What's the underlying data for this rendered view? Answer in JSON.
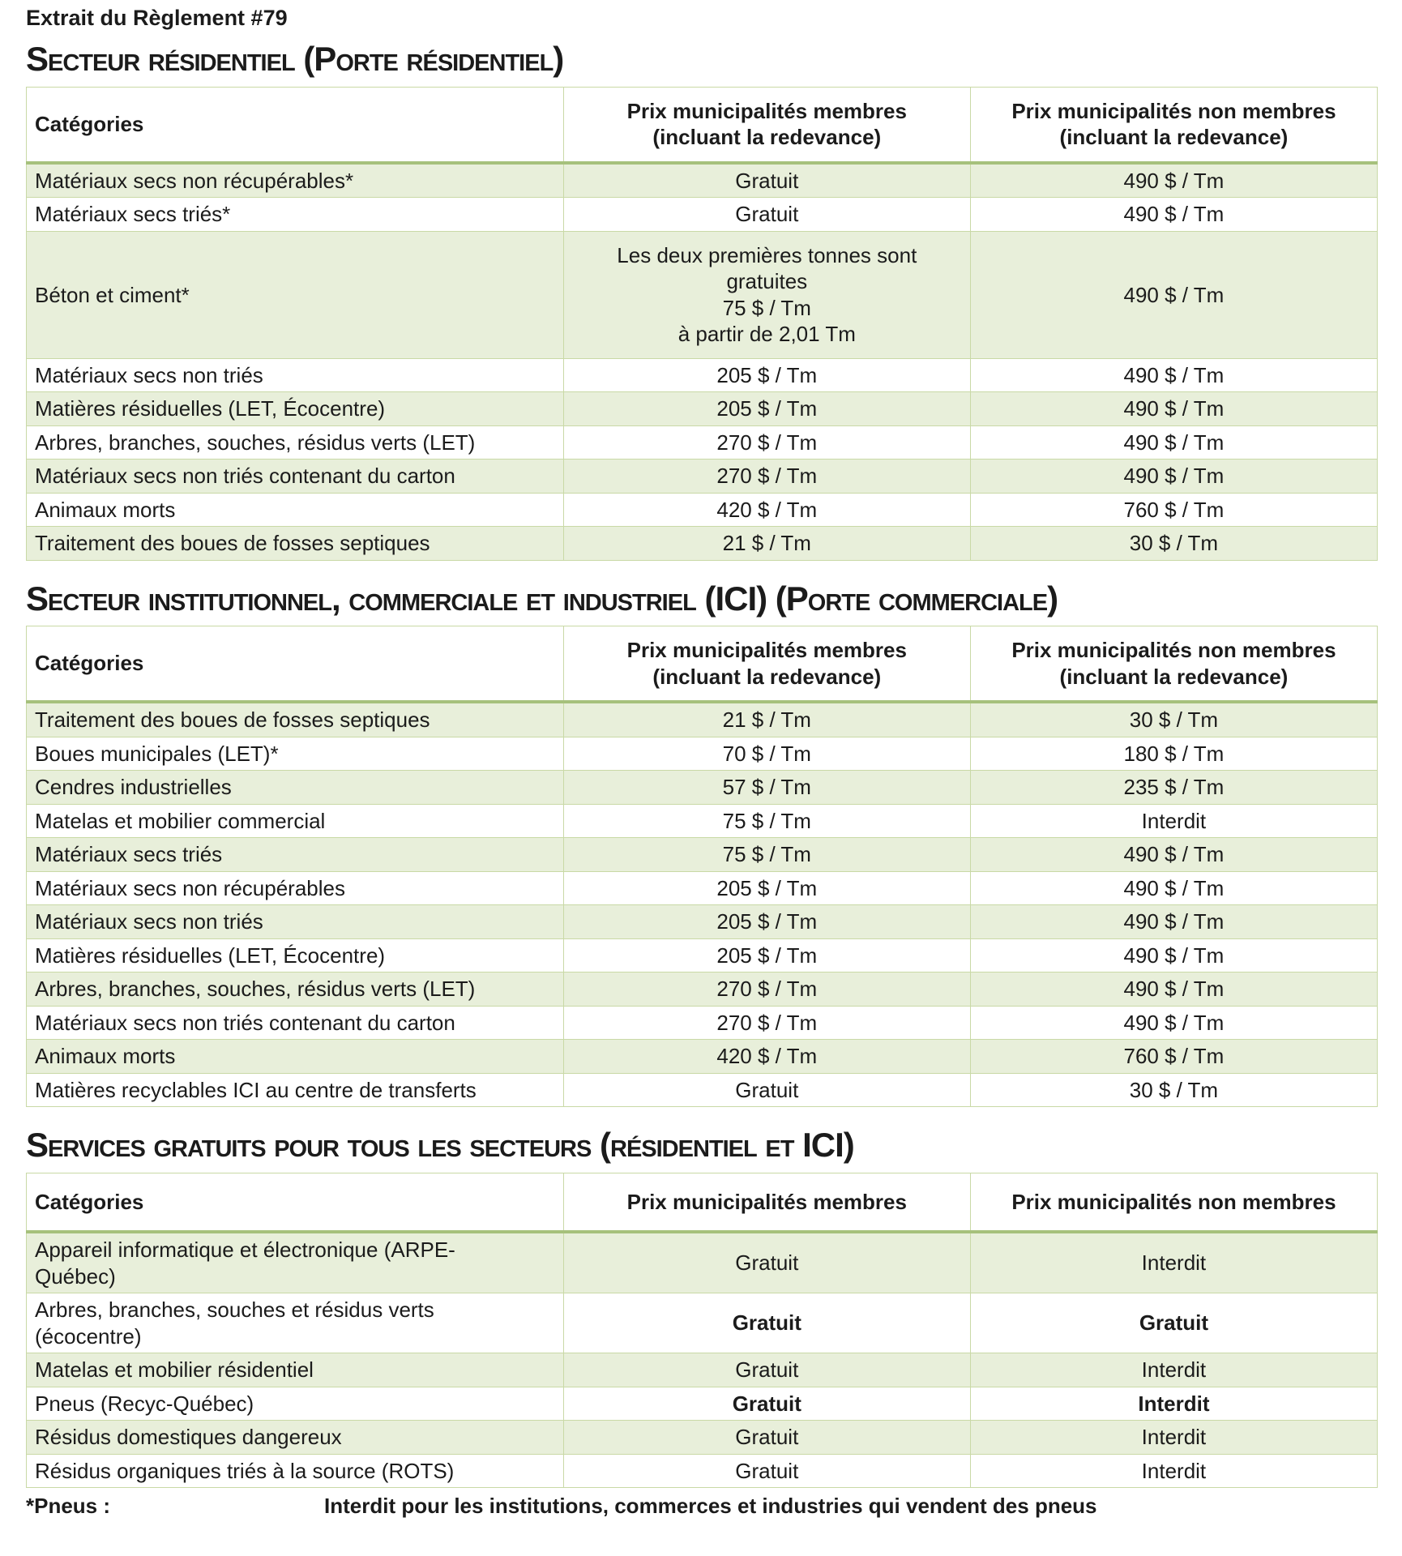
{
  "title": "Extrait du Règlement #79",
  "colors": {
    "row_shading": "#e8efda",
    "table_border": "#c9d9a6",
    "header_rule": "#a6c17c"
  },
  "sections": [
    {
      "id": "residentiel",
      "heading": "Secteur résidentiel (Porte résidentiel)",
      "columns": [
        "Catégories",
        "Prix municipalités membres\n(incluant la redevance)",
        "Prix municipalités non membres\n(incluant la redevance)"
      ],
      "rows": [
        {
          "category": "Matériaux secs non récupérables*",
          "member": "Gratuit",
          "non_member": "490 $ / Tm"
        },
        {
          "category": "Matériaux secs triés*",
          "member": "Gratuit",
          "non_member": "490 $ / Tm"
        },
        {
          "category": "Béton et ciment*",
          "member": "Les deux premières tonnes sont\ngratuites\n75 $ / Tm\nà partir de 2,01 Tm",
          "non_member": "490 $ / Tm"
        },
        {
          "category": "Matériaux secs non triés",
          "member": "205 $ / Tm",
          "non_member": "490 $ / Tm"
        },
        {
          "category": "Matières résiduelles (LET, Écocentre)",
          "member": "205 $ / Tm",
          "non_member": "490 $ / Tm"
        },
        {
          "category": "Arbres, branches, souches, résidus verts (LET)",
          "member": "270 $ / Tm",
          "non_member": "490 $ / Tm"
        },
        {
          "category": "Matériaux secs non triés contenant du carton",
          "member": "270 $ / Tm",
          "non_member": "490 $ / Tm"
        },
        {
          "category": "Animaux morts",
          "member": "420 $ / Tm",
          "non_member": "760 $ / Tm"
        },
        {
          "category": "Traitement des boues de fosses septiques",
          "member": "21 $ / Tm",
          "non_member": "30 $ / Tm"
        }
      ]
    },
    {
      "id": "ici",
      "heading": "Secteur institutionnel, commerciale et industriel (ICI) (Porte commerciale)",
      "columns": [
        "Catégories",
        "Prix municipalités membres\n(incluant la redevance)",
        "Prix municipalités non membres\n(incluant la redevance)"
      ],
      "rows": [
        {
          "category": "Traitement des boues de fosses septiques",
          "member": "21 $ / Tm",
          "non_member": "30 $ / Tm"
        },
        {
          "category": "Boues municipales (LET)*",
          "member": "70 $ / Tm",
          "non_member": "180 $ / Tm"
        },
        {
          "category": "Cendres industrielles",
          "member": "57 $ / Tm",
          "non_member": "235 $ / Tm"
        },
        {
          "category": "Matelas et mobilier commercial",
          "member": "75 $ / Tm",
          "non_member": "Interdit"
        },
        {
          "category": "Matériaux secs triés",
          "member": "75 $ / Tm",
          "non_member": "490 $ / Tm"
        },
        {
          "category": "Matériaux secs non récupérables",
          "member": "205 $ / Tm",
          "non_member": "490 $ / Tm"
        },
        {
          "category": "Matériaux secs non triés",
          "member": "205 $ / Tm",
          "non_member": "490 $ / Tm"
        },
        {
          "category": "Matières résiduelles (LET, Écocentre)",
          "member": "205 $ / Tm",
          "non_member": "490 $ / Tm"
        },
        {
          "category": "Arbres, branches, souches, résidus verts (LET)",
          "member": "270 $ / Tm",
          "non_member": "490 $ / Tm"
        },
        {
          "category": "Matériaux secs non triés contenant du carton",
          "member": "270 $ / Tm",
          "non_member": "490 $ / Tm"
        },
        {
          "category": "Animaux morts",
          "member": "420 $ / Tm",
          "non_member": "760 $ / Tm"
        },
        {
          "category": "Matières recyclables ICI au centre de transferts",
          "member": "Gratuit",
          "non_member": "30 $ / Tm"
        }
      ]
    },
    {
      "id": "services-gratuits",
      "heading": "Services gratuits pour tous les secteurs (résidentiel et ICI)",
      "columns": [
        "Catégories",
        "Prix municipalités membres",
        "Prix municipalités non membres"
      ],
      "rows": [
        {
          "category": "Appareil informatique et électronique (ARPE-\nQuébec)",
          "member": "Gratuit",
          "non_member": "Interdit"
        },
        {
          "category": "Arbres, branches, souches et résidus verts\n(écocentre)",
          "member": "Gratuit",
          "non_member": "Gratuit",
          "bold_values": true
        },
        {
          "category": "Matelas et mobilier résidentiel",
          "member": "Gratuit",
          "non_member": "Interdit"
        },
        {
          "category": "Pneus (Recyc-Québec)",
          "member": "Gratuit",
          "non_member": "Interdit",
          "bold_values": true
        },
        {
          "category": "Résidus domestiques dangereux",
          "member": "Gratuit",
          "non_member": "Interdit"
        },
        {
          "category": "Résidus organiques triés à la source (ROTS)",
          "member": "Gratuit",
          "non_member": "Interdit"
        }
      ]
    }
  ],
  "footnote": {
    "label": "*Pneus :",
    "text": "Interdit pour les institutions, commerces et industries qui vendent des pneus"
  }
}
